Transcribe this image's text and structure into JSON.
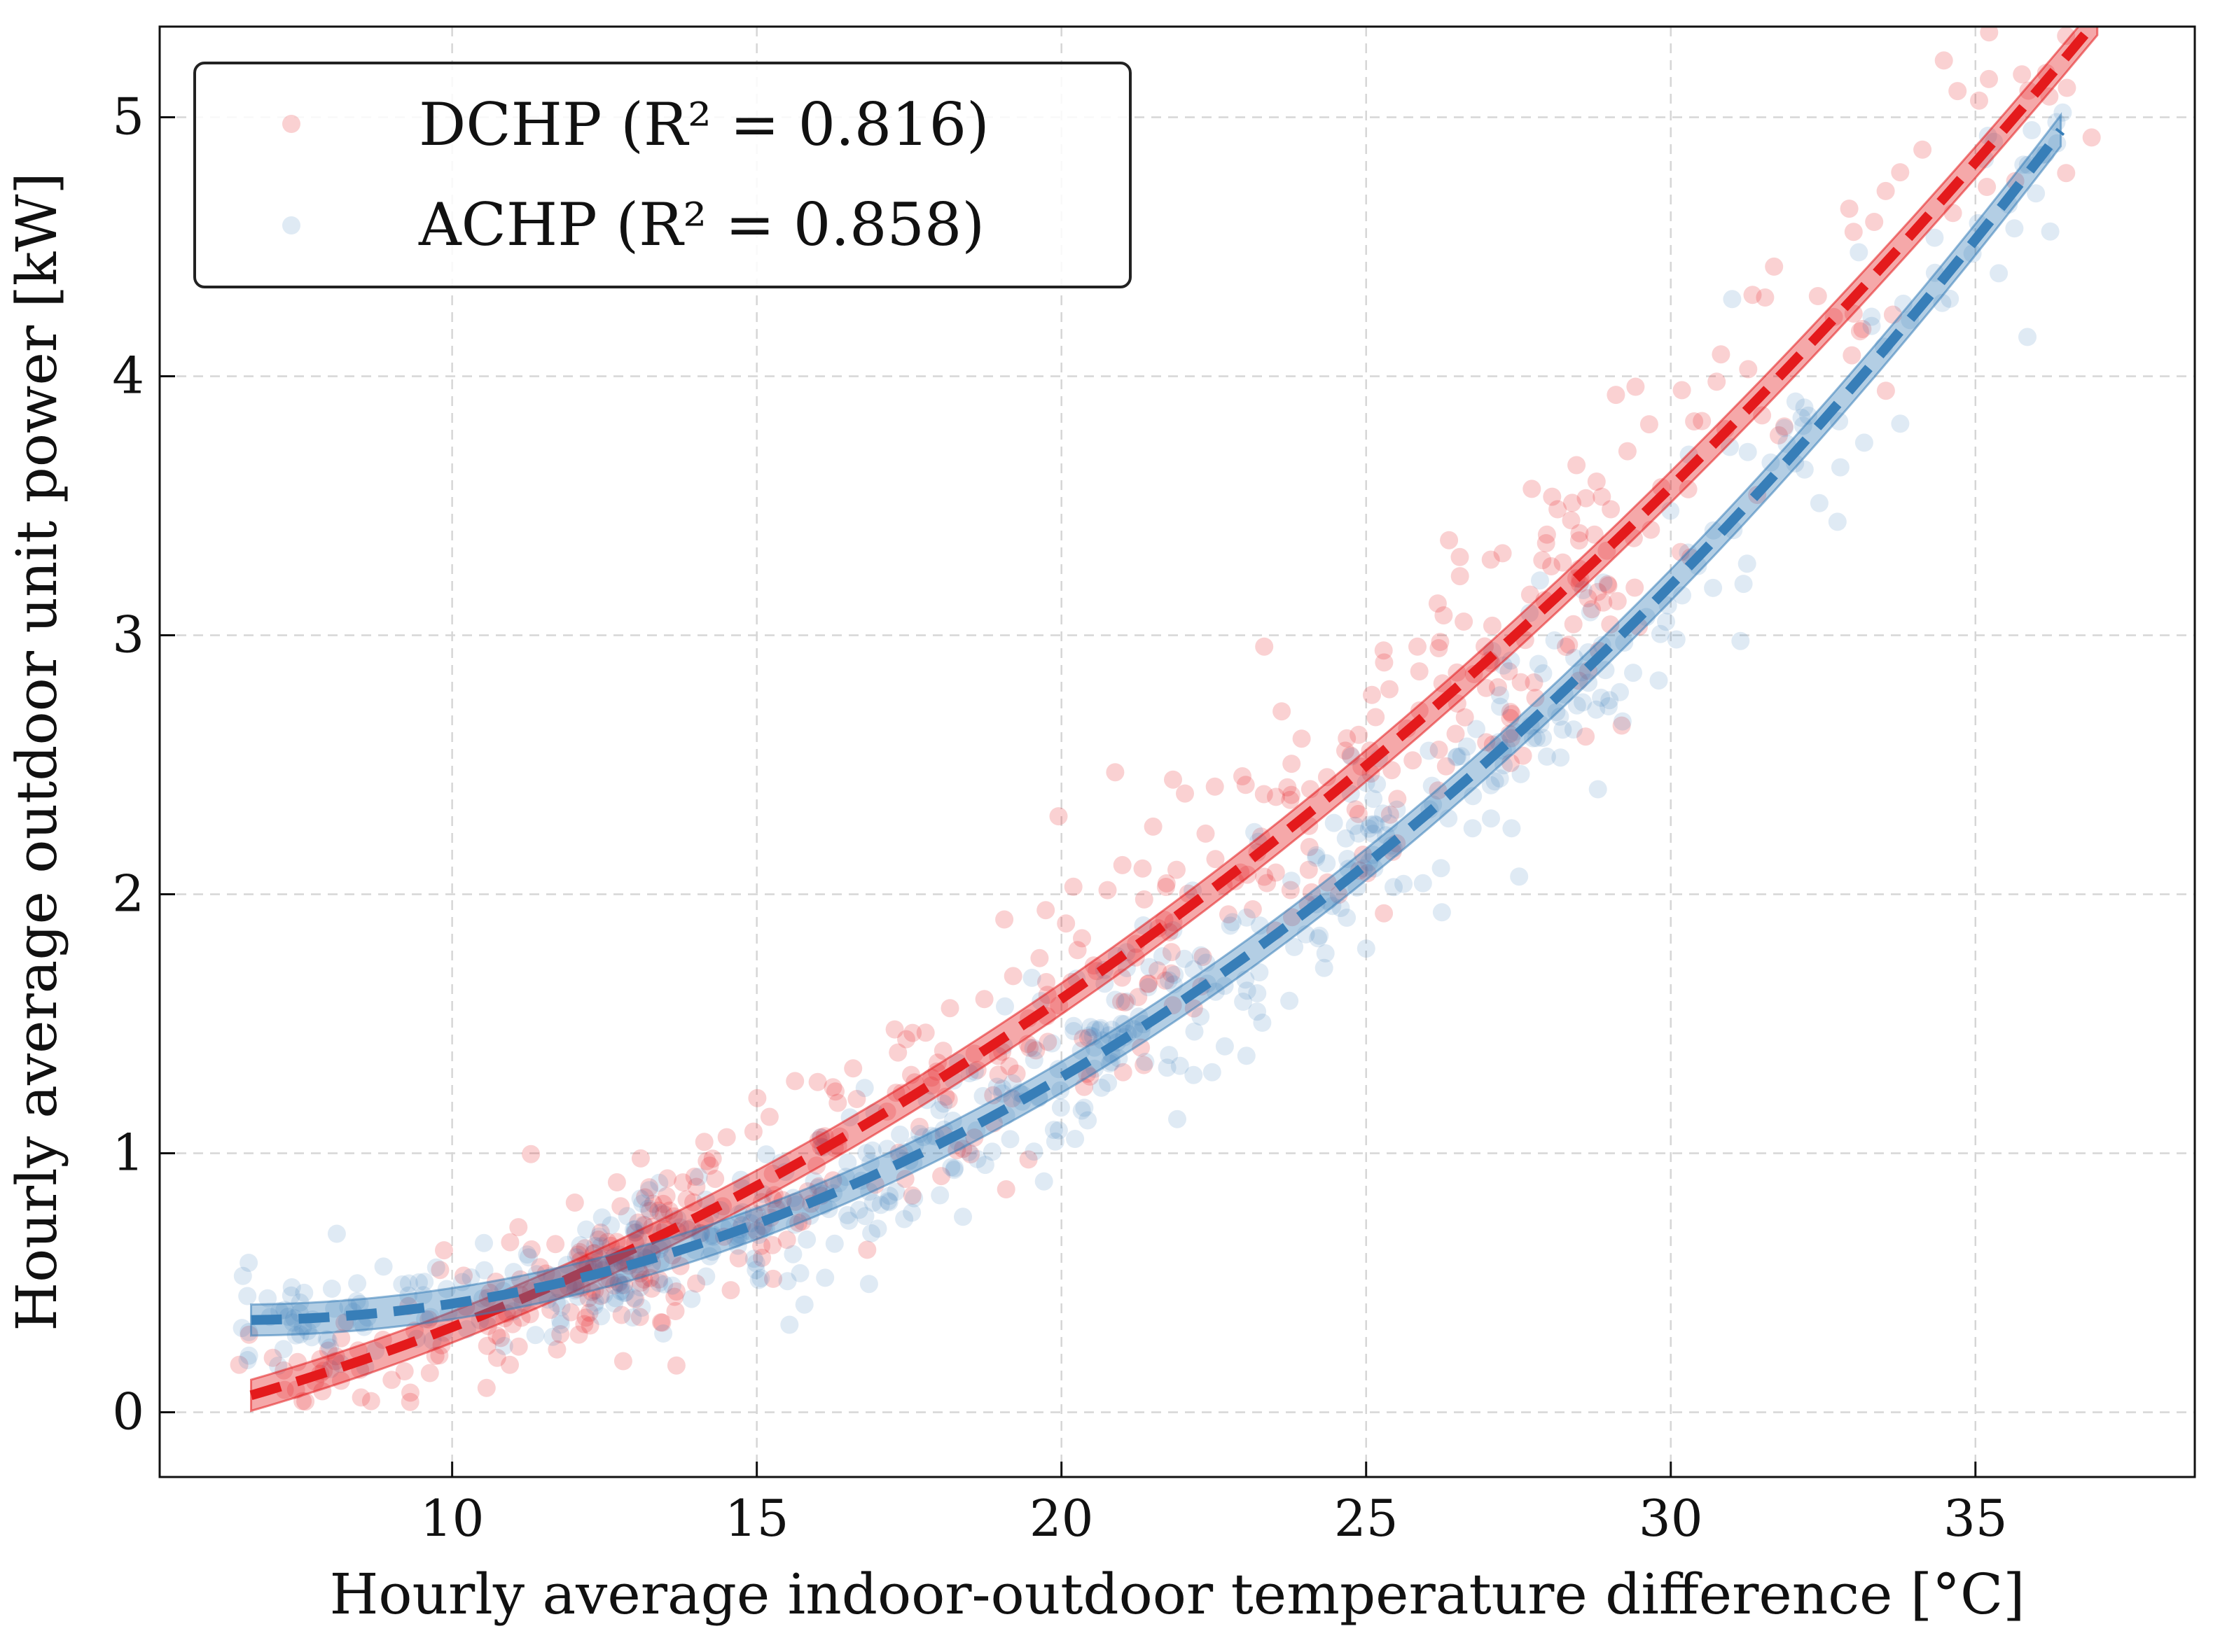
{
  "chart_data": {
    "type": "scatter",
    "title": "",
    "xlabel": "Hourly average indoor-outdoor temperature difference [°C]",
    "ylabel": "Hourly average outdoor unit power [kW]",
    "xlim": [
      5.2,
      38.6
    ],
    "ylim": [
      -0.25,
      5.35
    ],
    "xticks": [
      10,
      15,
      20,
      25,
      30,
      35
    ],
    "yticks": [
      0,
      1,
      2,
      3,
      4,
      5
    ],
    "xtick_labels": [
      "10",
      "15",
      "20",
      "25",
      "30",
      "35"
    ],
    "ytick_labels": [
      "0",
      "1",
      "2",
      "3",
      "4",
      "5"
    ],
    "grid": true,
    "legend_position": "top-left",
    "series": [
      {
        "name": "DCHP (R² = 0.816)",
        "color": "#e41a1c",
        "fit": {
          "x_range": [
            6.7,
            37.0
          ],
          "coefficients": [
            -0.2315,
            0.0206,
            0.00354
          ],
          "band_halfwidth": 0.06
        },
        "scatter": {
          "count": 520,
          "x_range": [
            6.5,
            37.0
          ],
          "noise_sd": 0.3,
          "opacity": 0.2
        }
      },
      {
        "name": "ACHP (R² = 0.858)",
        "color": "#377eb8",
        "fit": {
          "x_range": [
            6.7,
            36.4
          ],
          "coefficients": [
            0.5713,
            -0.0665,
            0.00513
          ],
          "band_halfwidth": 0.06
        },
        "scatter": {
          "count": 560,
          "x_range": [
            6.5,
            36.5
          ],
          "noise_sd": 0.22,
          "opacity": 0.16
        }
      }
    ]
  }
}
